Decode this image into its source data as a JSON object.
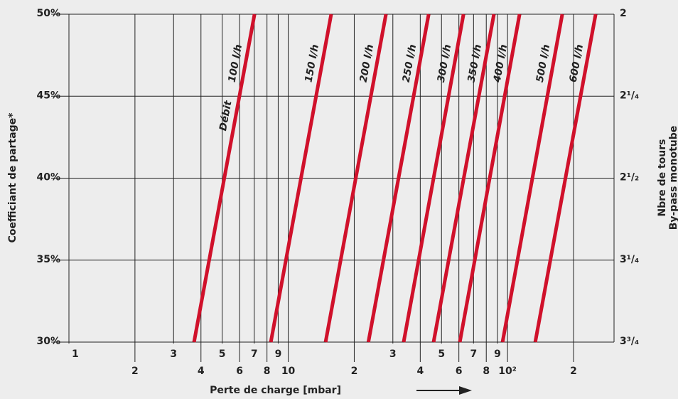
{
  "chart_data": {
    "type": "line",
    "y_label": "Coefficiant de partage*",
    "x_label": "Perte de charge [mbar]",
    "y2_label": [
      "Nbre de tours",
      "By-pass monotube"
    ],
    "annotation": "Débit",
    "log_x": true,
    "color": "#d0112b",
    "xlim": [
      1,
      306
    ],
    "ylim": [
      30,
      50
    ],
    "yticks": [
      {
        "value": 30,
        "label": "30%"
      },
      {
        "value": 35,
        "label": "35%"
      },
      {
        "value": 40,
        "label": "40%"
      },
      {
        "value": 45,
        "label": "45%"
      },
      {
        "value": 50,
        "label": "50%"
      }
    ],
    "y2_labels": [
      "3³/₄",
      "3¹/₄",
      "2¹/₂",
      "2¹/₄",
      "2"
    ],
    "xticks": [
      1,
      2,
      3,
      4,
      5,
      6,
      7,
      8,
      9,
      10,
      {
        "value": 20,
        "label": "2"
      },
      {
        "value": 30,
        "label": "3"
      },
      {
        "value": 40,
        "label": "4"
      },
      {
        "value": 50,
        "label": "5"
      },
      {
        "value": 60,
        "label": "6"
      },
      {
        "value": 70,
        "label": "7"
      },
      {
        "value": 80,
        "label": "8"
      },
      {
        "value": 90,
        "label": "9"
      },
      {
        "value": 100,
        "label": "10²"
      },
      {
        "value": 200,
        "label": "2"
      }
    ],
    "series": [
      {
        "name": "100 l/h",
        "x": [
          3.72,
          7.02
        ],
        "values": [
          30,
          50
        ]
      },
      {
        "name": "150 l/h",
        "x": [
          8.33,
          15.7
        ],
        "values": [
          30,
          50
        ]
      },
      {
        "name": "200 l/h",
        "x": [
          14.8,
          27.9
        ],
        "values": [
          30,
          50
        ]
      },
      {
        "name": "250 l/h",
        "x": [
          23.2,
          43.7
        ],
        "values": [
          30,
          50
        ]
      },
      {
        "name": "300 l/h",
        "x": [
          33.6,
          63.0
        ],
        "values": [
          30,
          50
        ]
      },
      {
        "name": "350 l/h",
        "x": [
          46.0,
          86.7
        ],
        "values": [
          30,
          50
        ]
      },
      {
        "name": "400 l/h",
        "x": [
          60.6,
          113.5
        ],
        "values": [
          30,
          50
        ]
      },
      {
        "name": "500 l/h",
        "x": [
          94.9,
          177.7
        ],
        "values": [
          30,
          50
        ]
      },
      {
        "name": "600 l/h",
        "x": [
          133.8,
          252.3
        ],
        "values": [
          30,
          50
        ]
      }
    ]
  }
}
